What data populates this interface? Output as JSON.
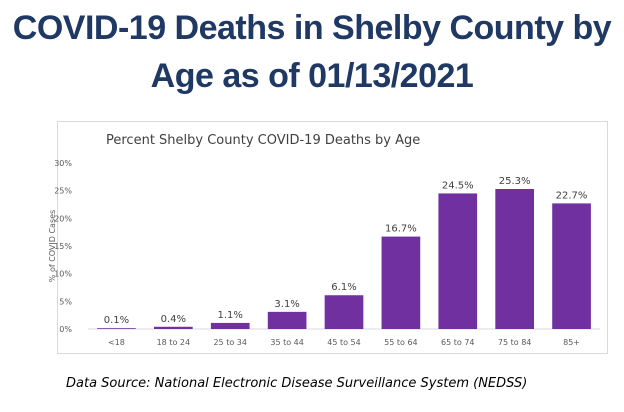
{
  "page": {
    "title_line1": "COVID-19 Deaths in Shelby County by",
    "title_line2": "Age as of 01/13/2021",
    "source": "Data Source: National Electronic Disease Surveillance System (NEDSS)"
  },
  "chart_data": {
    "type": "bar",
    "title": "Percent Shelby County COVID-19 Deaths by Age",
    "ylabel": "% of COVID Cases",
    "xlabel": "",
    "categories": [
      "<18",
      "18 to 24",
      "25 to 34",
      "35 to 44",
      "45 to 54",
      "55 to 64",
      "65 to 74",
      "75 to 84",
      "85+"
    ],
    "values": [
      0.1,
      0.4,
      1.1,
      3.1,
      6.1,
      16.7,
      24.5,
      25.3,
      22.7
    ],
    "data_labels": [
      "0.1%",
      "0.4%",
      "1.1%",
      "3.1%",
      "6.1%",
      "16.7%",
      "24.5%",
      "25.3%",
      "22.7%"
    ],
    "ylim": [
      0,
      30
    ],
    "yticks": [
      0,
      5,
      10,
      15,
      20,
      25,
      30
    ],
    "ytick_labels": [
      "0%",
      "5%",
      "10%",
      "15%",
      "20%",
      "25%",
      "30%"
    ],
    "grid": false,
    "legend": "none",
    "bar_color": "#7030a0"
  }
}
